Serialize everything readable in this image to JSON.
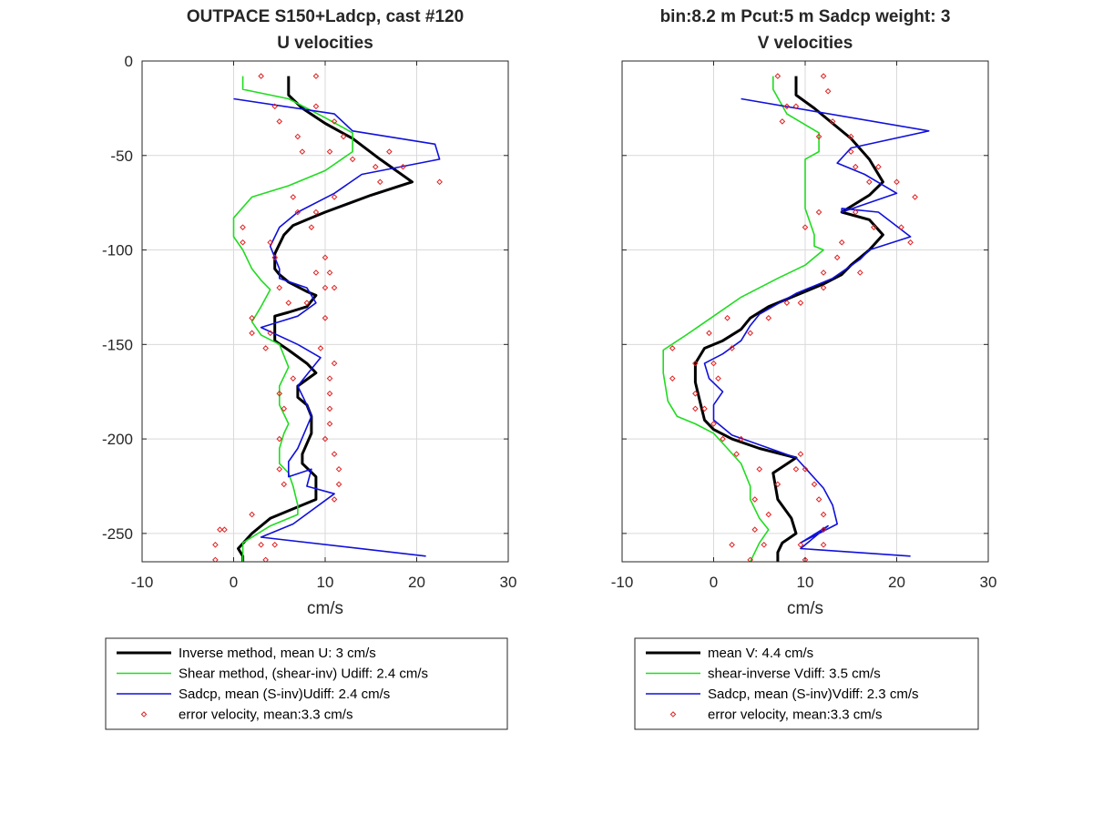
{
  "chart_data": [
    {
      "type": "line",
      "title": [
        "OUTPACE S150+Ladcp, cast #120",
        "U velocities"
      ],
      "xlabel": "cm/s",
      "ylabel": "",
      "xlim": [
        -10,
        30
      ],
      "ylim": [
        -265,
        0
      ],
      "xticks": [
        "-10",
        "0",
        "10",
        "20",
        "30"
      ],
      "yticks": [
        "0",
        "-50",
        "-100",
        "-150",
        "-200",
        "-250"
      ],
      "grid": true,
      "legend_position": "below",
      "series": [
        {
          "name": "Inverse method, mean U:  3 cm/s",
          "color": "#000000",
          "style": "thick-line",
          "x": [
            6,
            6,
            7.5,
            10,
            13,
            16,
            19.5,
            15,
            10,
            8,
            6.5,
            5.5,
            4.5,
            4.5,
            5,
            6,
            8,
            9,
            8,
            6,
            4.5,
            4.5,
            6,
            8,
            9,
            7,
            7,
            8,
            8.5,
            8.5,
            7.5,
            7.5,
            9,
            9,
            7,
            4,
            2,
            0.5,
            1,
            1
          ],
          "y": [
            -8,
            -18,
            -25,
            -33,
            -41,
            -52,
            -64,
            -71,
            -80,
            -84,
            -87,
            -92,
            -102,
            -110,
            -113,
            -117,
            -122,
            -124,
            -130,
            -133,
            -135,
            -148,
            -153,
            -160,
            -165,
            -172,
            -178,
            -182,
            -188,
            -197,
            -208,
            -213,
            -220,
            -232,
            -236,
            -242,
            -250,
            -258,
            -262,
            -265
          ]
        },
        {
          "name": "Shear method, (shear-inv)  Udiff:  2.4 cm/s",
          "color": "#1fdc1f",
          "style": "line",
          "x": [
            1,
            1,
            6,
            10,
            13,
            13,
            10,
            6,
            2,
            0,
            0,
            1,
            2,
            3,
            4,
            3,
            2,
            3,
            5,
            6,
            5,
            5,
            6,
            5.5,
            5,
            5,
            6,
            6.5,
            7,
            7,
            4,
            1,
            1
          ],
          "y": [
            -8,
            -15,
            -20,
            -30,
            -38,
            -48,
            -58,
            -66,
            -72,
            -83,
            -93,
            -100,
            -110,
            -116,
            -121,
            -130,
            -138,
            -145,
            -150,
            -162,
            -172,
            -182,
            -192,
            -197,
            -205,
            -213,
            -218,
            -225,
            -235,
            -240,
            -246,
            -255,
            -265
          ]
        },
        {
          "name": "Sadcp, mean (S-inv)Udiff: 2.4 cm/s",
          "color": "#1010dc",
          "style": "line",
          "x": [
            0,
            11,
            13,
            22,
            22.5,
            14,
            11,
            7,
            5,
            4,
            5,
            5,
            8,
            9,
            7,
            5,
            3,
            7,
            9.5,
            7,
            8,
            8.5,
            7,
            6,
            6,
            8.5,
            8,
            11,
            6.5,
            3,
            21
          ],
          "y": [
            -20,
            -28,
            -37,
            -44,
            -52,
            -60,
            -70,
            -80,
            -88,
            -98,
            -110,
            -115,
            -120,
            -128,
            -135,
            -138,
            -141,
            -150,
            -157,
            -172,
            -182,
            -188,
            -205,
            -212,
            -220,
            -216,
            -225,
            -229,
            -245,
            -252,
            -262
          ]
        },
        {
          "name": "error velocity, mean:3.3 cm/s",
          "color": "#e02020",
          "style": "markers",
          "x": [
            3,
            9,
            4.5,
            9,
            5,
            11,
            7,
            12,
            7.5,
            10.5,
            13,
            17,
            15.5,
            18.5,
            16,
            22.5,
            6.5,
            11,
            7,
            9,
            1,
            8.5,
            1,
            4,
            10,
            4.5,
            9,
            10.5,
            5,
            10,
            11,
            6,
            8,
            2,
            10,
            2,
            4,
            3.5,
            9.5,
            11,
            6.5,
            10.5,
            5,
            10.5,
            5.5,
            10.5,
            10.5,
            5,
            10,
            11,
            11.5,
            5,
            11.5,
            5.5,
            11,
            2,
            -1,
            -1.5,
            3,
            -2,
            4.5,
            -2,
            3.5
          ],
          "y": [
            -8,
            -8,
            -24,
            -24,
            -32,
            -32,
            -40,
            -40,
            -48,
            -48,
            -52,
            -48,
            -56,
            -56,
            -64,
            -64,
            -72,
            -72,
            -80,
            -80,
            -88,
            -88,
            -96,
            -96,
            -104,
            -104,
            -112,
            -112,
            -120,
            -120,
            -120,
            -128,
            -128,
            -136,
            -136,
            -144,
            -144,
            -152,
            -152,
            -160,
            -168,
            -168,
            -176,
            -176,
            -184,
            -184,
            -192,
            -200,
            -200,
            -208,
            -216,
            -216,
            -224,
            -224,
            -232,
            -240,
            -248,
            -248,
            -256,
            -256,
            -256,
            -264,
            -264
          ]
        }
      ]
    },
    {
      "type": "line",
      "title": [
        "bin:8.2 m  Pcut:5 m  Sadcp weight: 3",
        "V velocities"
      ],
      "xlabel": "cm/s",
      "ylabel": "",
      "xlim": [
        -10,
        30
      ],
      "ylim": [
        -265,
        0
      ],
      "xticks": [
        "-10",
        "0",
        "10",
        "20",
        "30"
      ],
      "yticks": [
        "0",
        "-50",
        "-100",
        "-150",
        "-200",
        "-250"
      ],
      "grid": true,
      "legend_position": "below",
      "series": [
        {
          "name": "mean V:  4.4 cm/s",
          "color": "#000000",
          "style": "thick-line",
          "x": [
            9,
            9,
            11,
            13,
            15,
            17,
            18.5,
            17,
            14,
            17,
            18.5,
            17,
            15,
            14,
            12,
            9,
            6,
            4,
            3,
            1,
            -1,
            -2,
            -2,
            -1.5,
            -1,
            0,
            2,
            5,
            9,
            6.5,
            7,
            8.5,
            9,
            7.5,
            7,
            7
          ],
          "y": [
            -8,
            -18,
            -25,
            -33,
            -41,
            -52,
            -64,
            -71,
            -80,
            -84,
            -92,
            -100,
            -108,
            -113,
            -118,
            -124,
            -130,
            -136,
            -142,
            -148,
            -152,
            -160,
            -170,
            -180,
            -190,
            -195,
            -200,
            -205,
            -210,
            -218,
            -232,
            -242,
            -250,
            -255,
            -260,
            -265
          ]
        },
        {
          "name": "shear-inverse Vdiff:  3.5 cm/s",
          "color": "#1fdc1f",
          "style": "line",
          "x": [
            6.5,
            6.5,
            8,
            11.5,
            11.5,
            10,
            10,
            11,
            11,
            12,
            10,
            7,
            3,
            0,
            -3,
            -5.5,
            -5.5,
            -5,
            -4,
            -2,
            0,
            1.5,
            3,
            4,
            4,
            5,
            6,
            5,
            4
          ],
          "y": [
            -8,
            -15,
            -28,
            -38,
            -48,
            -52,
            -78,
            -92,
            -98,
            -100,
            -108,
            -115,
            -125,
            -135,
            -145,
            -153,
            -165,
            -180,
            -188,
            -192,
            -197,
            -205,
            -213,
            -225,
            -232,
            -242,
            -248,
            -255,
            -265
          ]
        },
        {
          "name": "Sadcp, mean (S-inv)Vdiff: 2.3 cm/s",
          "color": "#1010dc",
          "style": "line",
          "x": [
            3,
            23.5,
            15,
            13.5,
            16.5,
            20,
            14,
            14,
            18,
            21.5,
            17,
            16,
            13,
            9,
            5,
            4,
            3,
            1,
            -1,
            -0.5,
            1,
            0,
            0,
            2,
            9,
            12,
            13,
            13.5,
            9.5,
            12.5,
            9.5,
            21.5
          ],
          "y": [
            -20,
            -37,
            -46,
            -54,
            -60,
            -70,
            -80,
            -78,
            -80,
            -93,
            -100,
            -105,
            -115,
            -123,
            -134,
            -140,
            -148,
            -155,
            -160,
            -168,
            -175,
            -182,
            -190,
            -198,
            -210,
            -226,
            -235,
            -245,
            -255,
            -246,
            -258,
            -262
          ],
          "annotations": []
        },
        {
          "name": "error velocity, mean:3.3 cm/s",
          "color": "#e02020",
          "style": "markers",
          "x": [
            7,
            12,
            12.5,
            8,
            9,
            13,
            7.5,
            15,
            11.5,
            15,
            15.5,
            18,
            17,
            20,
            11.5,
            15.5,
            22,
            10,
            17.5,
            20.5,
            14,
            13.5,
            21.5,
            12,
            16,
            12,
            9.5,
            8,
            6,
            1.5,
            4,
            -0.5,
            2,
            -4.5,
            0,
            -2,
            -4.5,
            0.5,
            -2,
            -1,
            -2,
            0,
            1,
            3,
            2.5,
            9.5,
            5,
            9,
            10,
            7,
            11,
            4.5,
            11.5,
            6,
            12,
            4.5,
            12,
            5.5,
            12,
            2,
            9.5,
            4,
            10
          ],
          "y": [
            -8,
            -8,
            -16,
            -24,
            -24,
            -32,
            -32,
            -40,
            -40,
            -48,
            -56,
            -56,
            -64,
            -64,
            -80,
            -80,
            -72,
            -88,
            -88,
            -88,
            -96,
            -104,
            -96,
            -112,
            -112,
            -120,
            -128,
            -128,
            -136,
            -136,
            -144,
            -144,
            -152,
            -152,
            -160,
            -160,
            -168,
            -168,
            -176,
            -184,
            -184,
            -192,
            -200,
            -200,
            -208,
            -208,
            -216,
            -216,
            -216,
            -224,
            -224,
            -232,
            -232,
            -240,
            -240,
            -248,
            -248,
            -256,
            -256,
            -256,
            -256,
            -264,
            -264
          ]
        }
      ]
    }
  ]
}
